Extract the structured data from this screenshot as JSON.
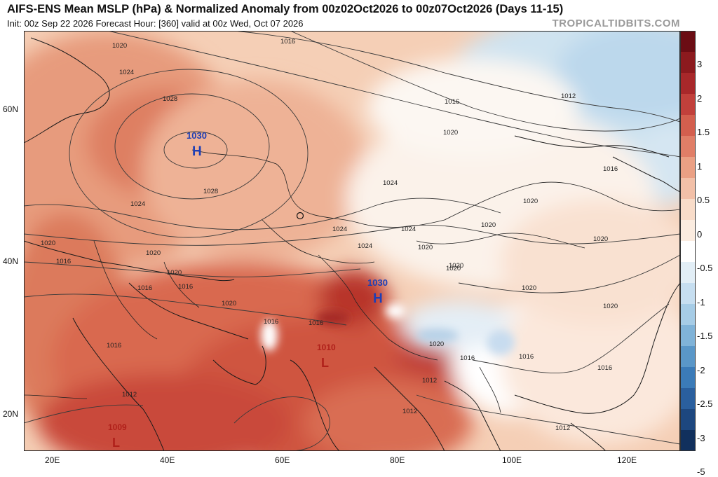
{
  "header": {
    "title": "AIFS-ENS Mean MSLP (hPa) & Normalized Anomaly from 00z02Oct2026 to 00z07Oct2026 (Days 11-15)",
    "subtitle": "Init: 00z Sep 22 2026   Forecast Hour: [360]   valid at 00z Wed, Oct 07 2026",
    "brand": "TROPICALTIDBITS.COM"
  },
  "axes": {
    "lat_labels": [
      "60N",
      "40N",
      "20N"
    ],
    "lon_labels": [
      "20E",
      "40E",
      "60E",
      "80E",
      "100E",
      "120E"
    ]
  },
  "colorbar": {
    "labels": [
      "3",
      "2",
      "1.5",
      "1",
      "0.5",
      "0",
      "-0.5",
      "-1",
      "-1.5",
      "-2",
      "-2.5",
      "-3",
      "-5"
    ],
    "colors": [
      "#6b0d14",
      "#8c1a1e",
      "#a8282a",
      "#c1403b",
      "#d35f4e",
      "#e07e67",
      "#eaa084",
      "#f2c0a8",
      "#f8dcc9",
      "#fbece0",
      "#ffffff",
      "#e2eef6",
      "#c6def0",
      "#a6cce6",
      "#80b3d8",
      "#5a97c8",
      "#3b7bb8",
      "#2a5f9e",
      "#1d477f",
      "#11305d"
    ]
  },
  "pressure_centers": [
    {
      "type": "H",
      "value": "1030"
    },
    {
      "type": "H",
      "value": "1030"
    },
    {
      "type": "L",
      "value": "1010"
    },
    {
      "type": "L",
      "value": "1009"
    }
  ],
  "isobar_labels": [
    "1020",
    "1024",
    "1028",
    "1016",
    "1016",
    "1020",
    "1024",
    "1028",
    "1024",
    "1020",
    "1020",
    "1024",
    "1024",
    "1024",
    "1020",
    "1020",
    "1020",
    "1016",
    "1016",
    "1020",
    "1016",
    "1016",
    "1016",
    "1020",
    "1020",
    "1016",
    "1020",
    "1020",
    "1016",
    "1012",
    "1012",
    "1012",
    "1016",
    "1020",
    "1020",
    "1020",
    "1012",
    "1016",
    "1012",
    "1016"
  ],
  "colors": {
    "high_label": "#1e3fb5",
    "low_label": "#b0201a",
    "isobar": "#333333"
  }
}
